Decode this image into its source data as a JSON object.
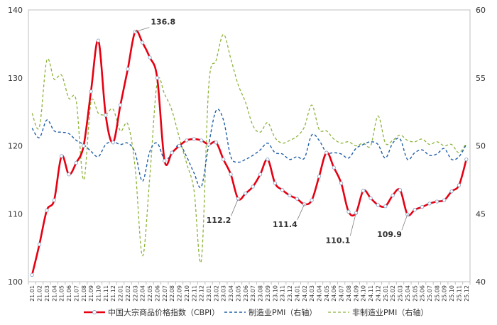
{
  "chart_data": {
    "type": "line",
    "categories": [
      "21.01",
      "21.02",
      "21.03",
      "21.04",
      "21.05",
      "21.06",
      "21.07",
      "21.08",
      "21.09",
      "21.10",
      "21.11",
      "21.12",
      "22.01",
      "22.02",
      "22.03",
      "22.04",
      "22.05",
      "22.06",
      "22.07",
      "22.08",
      "22.09",
      "22.10",
      "22.11",
      "22.12",
      "23.01",
      "23.02",
      "23.03",
      "23.04",
      "23.05",
      "23.06",
      "23.07",
      "23.08",
      "23.09",
      "23.10",
      "23.11",
      "23.12",
      "24.01",
      "24.02",
      "24.03",
      "24.04",
      "24.05",
      "24.06",
      "24.07",
      "24.08",
      "24.09",
      "24.10",
      "24.11",
      "24.12",
      "25.01",
      "25.02",
      "25.03",
      "25.04",
      "25.05",
      "25.06",
      "25.07",
      "25.08",
      "25.09",
      "25.10",
      "25.11",
      "25.12"
    ],
    "ylim_left": [
      100,
      140
    ],
    "ylim_right": [
      40,
      60
    ],
    "yticks_left": [
      100,
      110,
      120,
      130,
      140
    ],
    "yticks_right": [
      40,
      45,
      50,
      55,
      60
    ],
    "grid": false,
    "legend_position": "bottom",
    "series": [
      {
        "name": "中国大宗商品价格指数（CBPI）",
        "axis": "left",
        "color": "#e60012",
        "values": [
          101,
          105.5,
          110.5,
          112,
          118.5,
          115.8,
          117.5,
          120,
          128,
          135.5,
          124.5,
          120.5,
          126,
          131.3,
          136.8,
          135.2,
          133,
          130,
          117.8,
          119,
          120,
          120.8,
          121,
          120.8,
          120.2,
          120.5,
          118,
          115.8,
          112.2,
          113,
          114,
          115.8,
          118,
          114.5,
          113.5,
          112.7,
          112.2,
          111.4,
          112,
          115.5,
          119,
          116.8,
          114.5,
          110.3,
          110.1,
          113.4,
          112.3,
          111.3,
          111.1,
          112.7,
          113.5,
          109.9,
          110.6,
          111,
          111.5,
          111.8,
          112,
          113.3,
          114.2,
          118
        ]
      },
      {
        "name": "制造业PMI（右轴）",
        "axis": "right",
        "color": "#1f5fa8",
        "values": [
          51.3,
          50.6,
          51.9,
          51.1,
          51,
          50.9,
          50.4,
          50.1,
          49.6,
          49.2,
          50.1,
          50.3,
          50.1,
          50.2,
          49.5,
          47.4,
          49.6,
          50.2,
          49,
          49.4,
          50.1,
          49.2,
          48,
          47,
          50.1,
          52.6,
          51.9,
          49.2,
          48.8,
          49,
          49.3,
          49.7,
          50.2,
          49.5,
          49.4,
          49,
          49.2,
          49.1,
          50.8,
          50.4,
          49.5,
          49.5,
          49.4,
          49.1,
          49.8,
          50.1,
          50.3,
          50.1,
          49.1,
          50.2,
          50.5,
          49,
          49.5,
          49.7,
          49.3,
          49.4,
          49.8,
          49,
          49.2,
          50.1
        ]
      },
      {
        "name": "非制造业PMI（右轴）",
        "axis": "right",
        "color": "#8db33b",
        "values": [
          52.4,
          51.4,
          56.3,
          54.9,
          55.2,
          53.5,
          53.3,
          47.5,
          53.2,
          52.4,
          52.3,
          52.7,
          51.1,
          51.6,
          48.4,
          41.9,
          47.8,
          54.7,
          53.8,
          52.6,
          50.6,
          48.7,
          46.7,
          41.6,
          54.4,
          56.3,
          58.2,
          56.4,
          54.5,
          53.2,
          51.5,
          51,
          51.7,
          50.6,
          50.2,
          50.4,
          50.7,
          51.4,
          53,
          51.2,
          51.1,
          50.5,
          50.2,
          50.3,
          50,
          50.2,
          50,
          52.2,
          50.2,
          50.4,
          50.8,
          50.4,
          50.3,
          50.5,
          50.1,
          50.3,
          50,
          50.1,
          49.5,
          50.2
        ]
      }
    ],
    "annotations": [
      {
        "label": "136.8",
        "index": 14,
        "value": 136.8
      },
      {
        "label": "112.2",
        "index": 28,
        "value": 112.2
      },
      {
        "label": "111.4",
        "index": 37,
        "value": 111.4
      },
      {
        "label": "110.1",
        "index": 44,
        "value": 110.1
      },
      {
        "label": "109.9",
        "index": 51,
        "value": 109.9
      }
    ]
  }
}
